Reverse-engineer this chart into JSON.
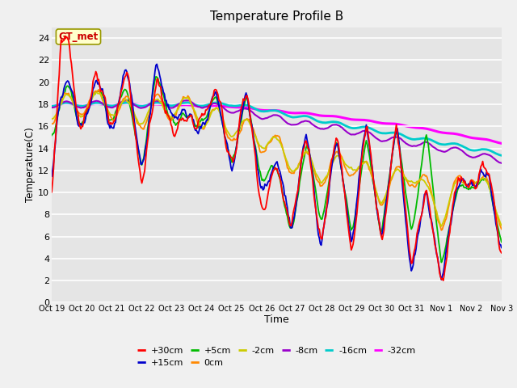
{
  "title": "Temperature Profile B",
  "xlabel": "Time",
  "ylabel": "Temperature(C)",
  "annotation_text": "GT_met",
  "ylim": [
    0,
    25
  ],
  "yticks": [
    0,
    2,
    4,
    6,
    8,
    10,
    12,
    14,
    16,
    18,
    20,
    22,
    24
  ],
  "xtick_labels": [
    "Oct 19",
    "Oct 20",
    "Oct 21",
    "Oct 22",
    "Oct 23",
    "Oct 24",
    "Oct 25",
    "Oct 26",
    "Oct 27",
    "Oct 28",
    "Oct 29",
    "Oct 30",
    "Oct 31",
    "Nov 1",
    "Nov 2",
    "Nov 3"
  ],
  "num_points": 480,
  "series_colors": [
    "#ff0000",
    "#0000cc",
    "#00bb00",
    "#ff8800",
    "#cccc00",
    "#9900cc",
    "#00cccc",
    "#ff00ff"
  ],
  "series_names": [
    "+30cm",
    "+15cm",
    "+5cm",
    "0cm",
    "-2cm",
    "-8cm",
    "-16cm",
    "-32cm"
  ],
  "bg_color": "#e5e5e5",
  "grid_color": "#ffffff",
  "fig_facecolor": "#f0f0f0",
  "title_fontsize": 11
}
